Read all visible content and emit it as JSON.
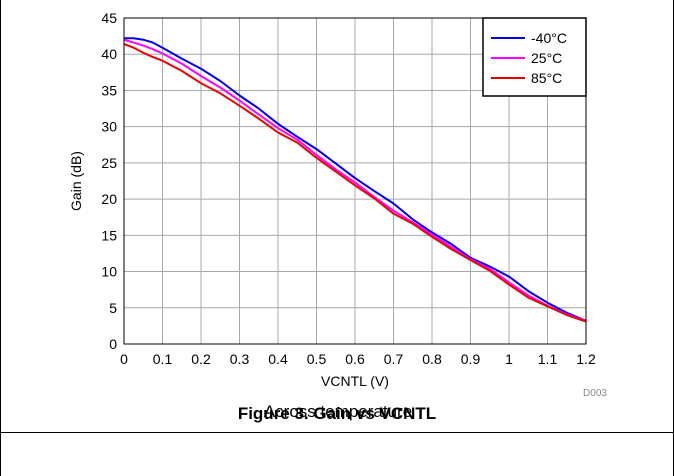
{
  "figure": {
    "caption": "Figure 3. Gain vs VCNTL",
    "code": "D003"
  },
  "chart_data": {
    "type": "line",
    "title": "",
    "subtitle": "Across temperature",
    "xlabel": "VCNTL (V)",
    "ylabel": "Gain (dB)",
    "xlim": [
      0,
      1.2
    ],
    "ylim": [
      0,
      45
    ],
    "xticks": [
      0,
      0.1,
      0.2,
      0.3,
      0.4,
      0.5,
      0.6,
      0.7,
      0.8,
      0.9,
      1,
      1.1,
      1.2
    ],
    "yticks": [
      0,
      5,
      10,
      15,
      20,
      25,
      30,
      35,
      40,
      45
    ],
    "grid": true,
    "legend_position": "top-right",
    "x": [
      0,
      0.025,
      0.05,
      0.075,
      0.1,
      0.15,
      0.2,
      0.25,
      0.3,
      0.35,
      0.4,
      0.45,
      0.5,
      0.55,
      0.6,
      0.65,
      0.7,
      0.75,
      0.8,
      0.85,
      0.9,
      0.95,
      1.0,
      1.05,
      1.1,
      1.15,
      1.2
    ],
    "series": [
      {
        "name": "-40°C",
        "color": "#0000ee",
        "values": [
          42.2,
          42.2,
          42.0,
          41.6,
          40.9,
          39.4,
          38.0,
          36.3,
          34.3,
          32.5,
          30.4,
          28.6,
          26.9,
          24.9,
          22.9,
          21.1,
          19.4,
          17.2,
          15.4,
          13.8,
          11.9,
          10.7,
          9.3,
          7.3,
          5.7,
          4.3,
          3.2
        ]
      },
      {
        "name": "25°C",
        "color": "#ff00ff",
        "values": [
          42.0,
          41.6,
          41.2,
          40.7,
          40.1,
          38.7,
          37.0,
          35.4,
          33.6,
          31.7,
          29.8,
          28.2,
          26.1,
          24.1,
          22.3,
          20.3,
          18.4,
          16.8,
          15.1,
          13.4,
          11.7,
          10.4,
          8.5,
          6.7,
          5.3,
          4.1,
          3.2
        ]
      },
      {
        "name": "85°C",
        "color": "#ee0000",
        "values": [
          41.4,
          40.9,
          40.2,
          39.6,
          39.1,
          37.7,
          36.0,
          34.6,
          32.9,
          31.1,
          29.2,
          27.8,
          25.7,
          23.8,
          21.9,
          20.1,
          18.0,
          16.6,
          14.8,
          13.1,
          11.6,
          10.1,
          8.2,
          6.4,
          5.2,
          4.0,
          3.1
        ]
      }
    ]
  }
}
